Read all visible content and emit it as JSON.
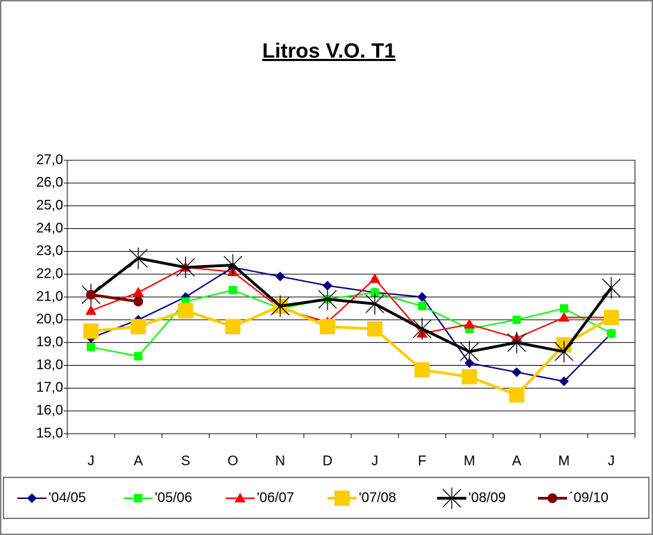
{
  "chart_data": {
    "type": "line",
    "title": "Litros V.O. T1",
    "categories": [
      "J",
      "A",
      "S",
      "O",
      "N",
      "D",
      "J",
      "F",
      "M",
      "A",
      "M",
      "J"
    ],
    "ylim": [
      15,
      27
    ],
    "yticks": [
      {
        "value": 15,
        "label": "15,0"
      },
      {
        "value": 16,
        "label": "16,0"
      },
      {
        "value": 17,
        "label": "17,0"
      },
      {
        "value": 18,
        "label": "18,0"
      },
      {
        "value": 19,
        "label": "19,0"
      },
      {
        "value": 20,
        "label": "20,0"
      },
      {
        "value": 21,
        "label": "21,0"
      },
      {
        "value": 22,
        "label": "22,0"
      },
      {
        "value": 23,
        "label": "23,0"
      },
      {
        "value": 24,
        "label": "24,0"
      },
      {
        "value": 25,
        "label": "25,0"
      },
      {
        "value": 26,
        "label": "26,0"
      },
      {
        "value": 27,
        "label": "27,0"
      }
    ],
    "grid": true,
    "legend": "bottom",
    "series": [
      {
        "name": "'04/05",
        "color": "#000080",
        "marker": "diamond",
        "values": [
          19.2,
          20.0,
          21.0,
          22.3,
          21.9,
          21.5,
          21.2,
          21.0,
          18.1,
          17.7,
          17.3,
          19.4
        ]
      },
      {
        "name": "'05/06",
        "color": "#00ff00",
        "marker": "square",
        "values": [
          18.8,
          18.4,
          20.8,
          21.3,
          20.5,
          20.9,
          21.2,
          20.6,
          19.6,
          20.0,
          20.5,
          19.4
        ]
      },
      {
        "name": "'06/07",
        "color": "#ff0000",
        "marker": "triangle",
        "values": [
          20.4,
          21.2,
          22.3,
          22.1,
          20.5,
          19.9,
          21.8,
          19.4,
          19.8,
          19.2,
          20.1,
          20.1
        ]
      },
      {
        "name": "'07/08",
        "color": "#ffcc00",
        "marker": "bigsquare",
        "values": [
          19.5,
          19.7,
          20.4,
          19.7,
          20.6,
          19.7,
          19.6,
          17.8,
          17.5,
          16.7,
          18.9,
          20.1
        ]
      },
      {
        "name": "'08/09",
        "color": "#000000",
        "marker": "star",
        "values": [
          21.1,
          22.7,
          22.3,
          22.4,
          20.6,
          20.9,
          20.7,
          19.6,
          18.6,
          19.0,
          18.6,
          21.4
        ]
      },
      {
        "name": "´09/10",
        "color": "#800000",
        "marker": "circle",
        "values": [
          21.1,
          20.8,
          null,
          null,
          null,
          null,
          null,
          null,
          null,
          null,
          null,
          null
        ]
      }
    ]
  }
}
